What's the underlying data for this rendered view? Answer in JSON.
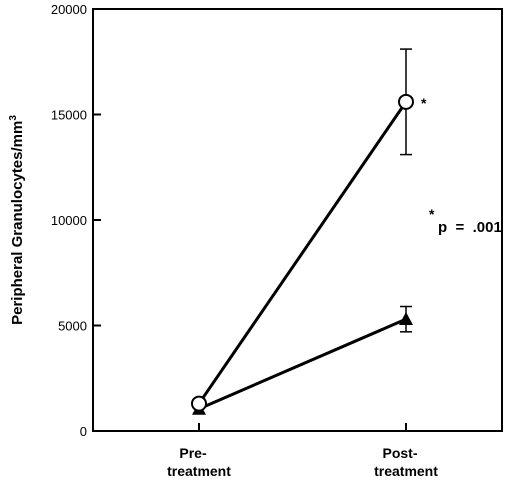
{
  "chart_data": {
    "type": "line",
    "ylabel": "Peripheral  Granulocytes/mm",
    "ylabel_sup": "3",
    "ylim": [
      0,
      20000
    ],
    "yticks": [
      "0",
      "5000",
      "10000",
      "15000",
      "20000"
    ],
    "yticks_values": [
      0,
      5000,
      10000,
      15000,
      20000
    ],
    "categories": [
      [
        "Pre-",
        "treatment"
      ],
      [
        "Post-",
        "treatment"
      ]
    ],
    "series": [
      {
        "marker": "open-circle",
        "values": [
          1300,
          15600
        ],
        "error": [
          null,
          [
            13100,
            18100
          ]
        ]
      },
      {
        "marker": "filled-triangle",
        "values": [
          1050,
          5300
        ],
        "error": [
          null,
          [
            4700,
            5900
          ]
        ]
      }
    ],
    "annotations": {
      "post_star": "*",
      "pvalue_star": "*",
      "pvalue_text": "p  =  .001"
    },
    "grid": false,
    "legend": "none"
  }
}
